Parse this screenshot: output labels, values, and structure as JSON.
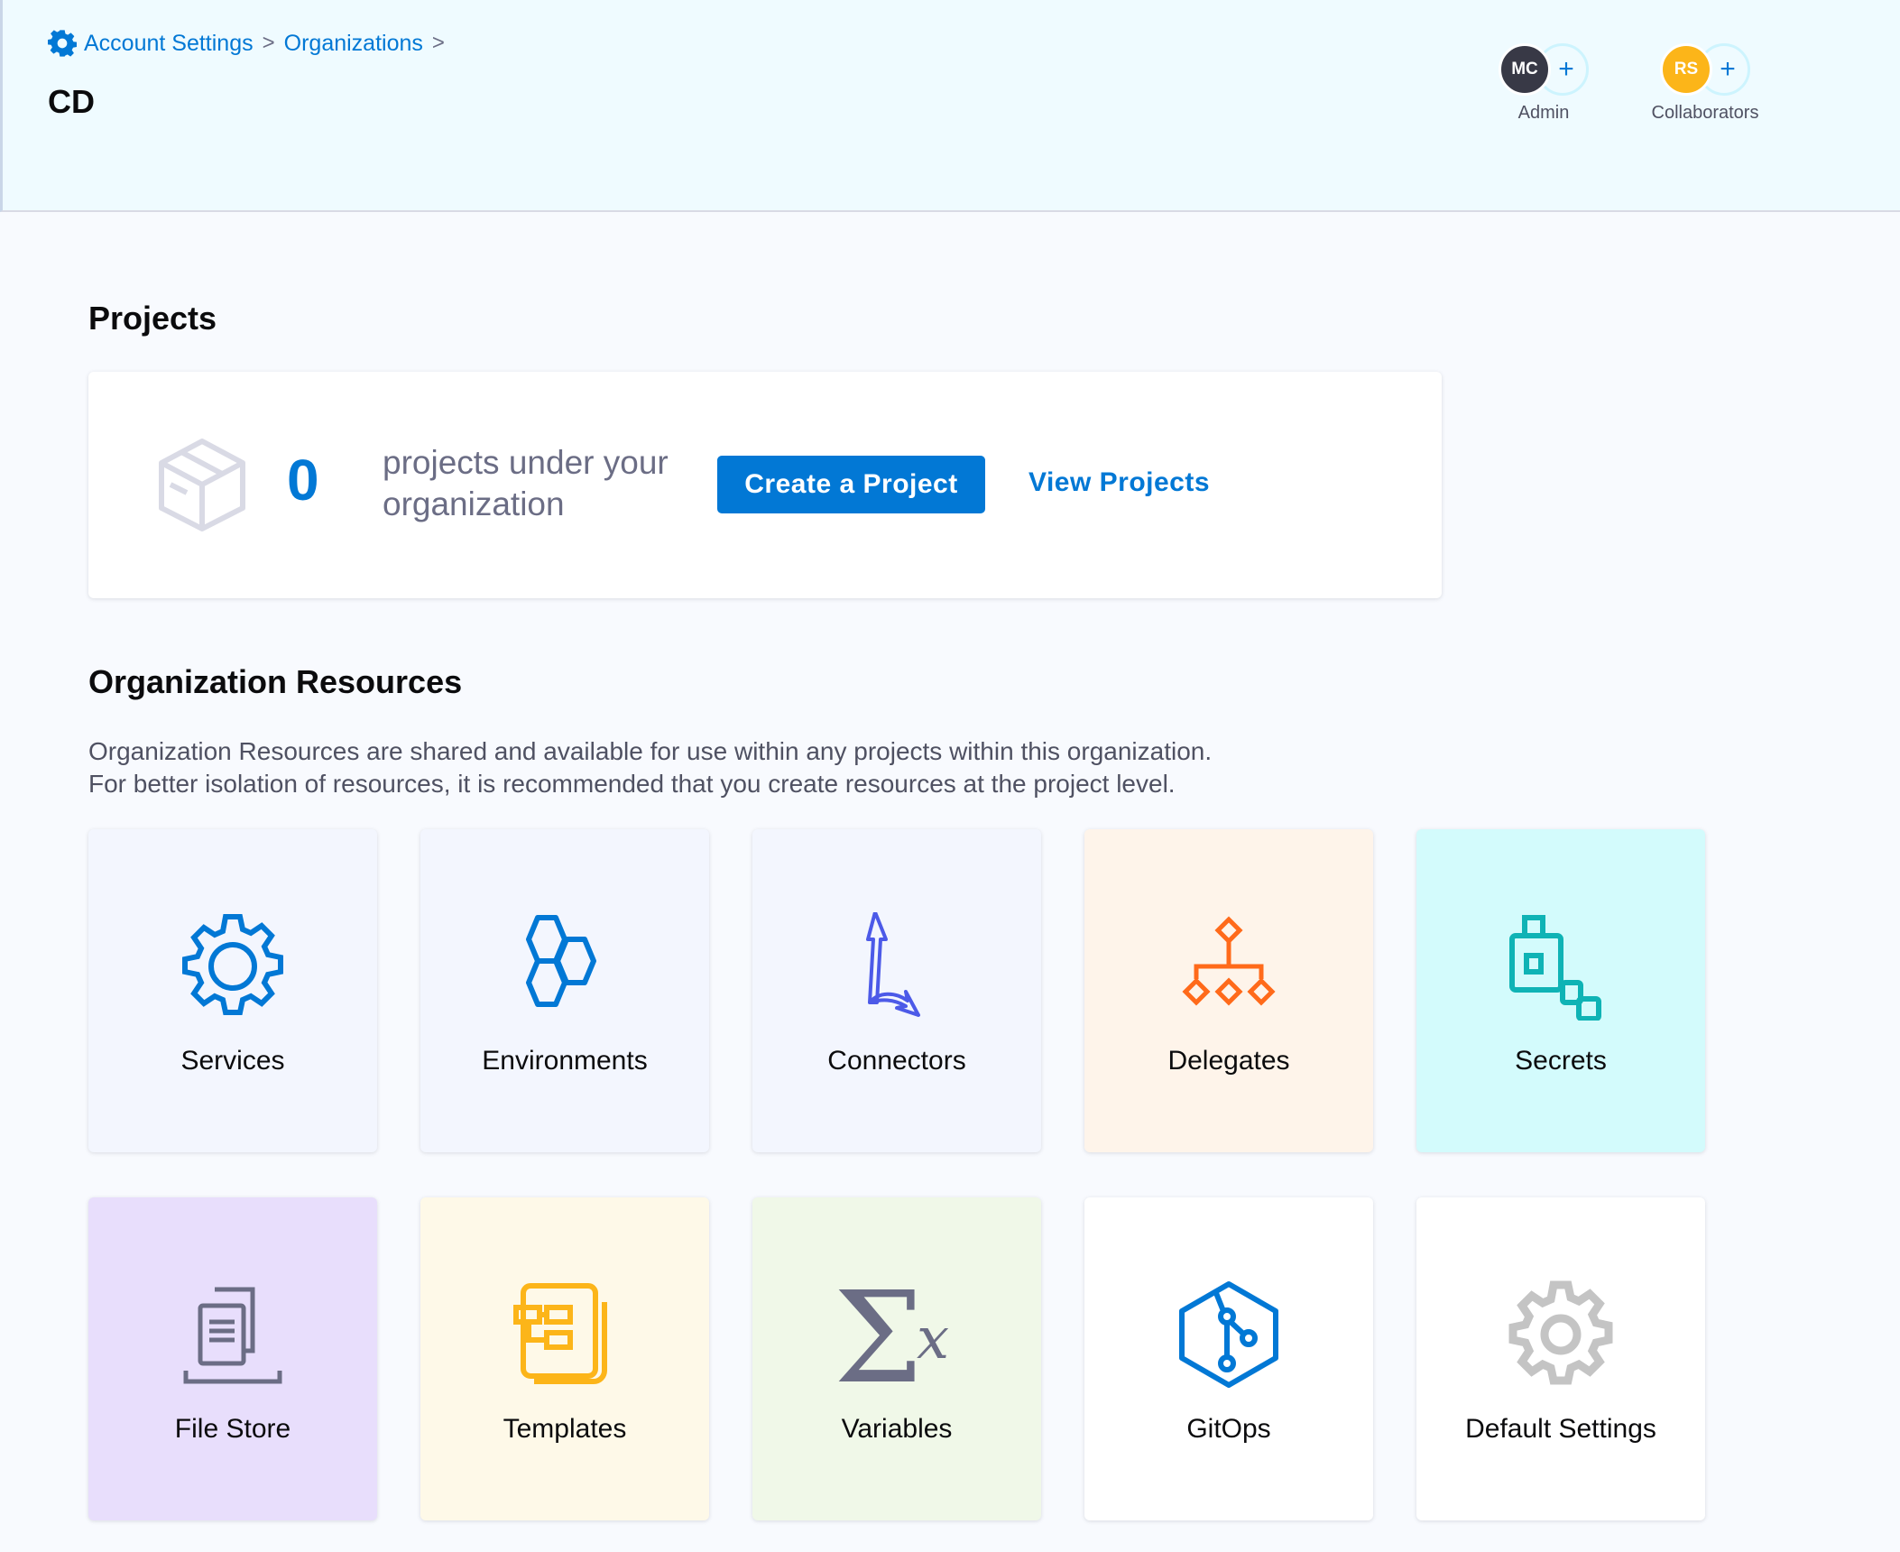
{
  "breadcrumb": {
    "items": [
      "Account Settings",
      "Organizations"
    ],
    "separator": ">",
    "icon": "gear-icon"
  },
  "header": {
    "title": "CD",
    "admin": {
      "initials": "MC",
      "label": "Admin",
      "color": "#383946",
      "add": "+"
    },
    "collaborators": {
      "initials": "RS",
      "label": "Collaborators",
      "color": "#fcb519",
      "add": "+"
    }
  },
  "projects": {
    "heading": "Projects",
    "count": "0",
    "text": "projects under your organization",
    "create_label": "Create a Project",
    "view_label": "View Projects",
    "icon": "cube-icon"
  },
  "resources": {
    "heading": "Organization Resources",
    "description_line1": "Organization Resources are shared and available for use within any projects within this organization.",
    "description_line2": "For better isolation of resources, it is recommended that you create resources at the project level.",
    "tiles": [
      {
        "label": "Services",
        "icon": "gear-icon",
        "bg": "#f3f6fe"
      },
      {
        "label": "Environments",
        "icon": "hexagons-icon",
        "bg": "#f3f6fe"
      },
      {
        "label": "Connectors",
        "icon": "connector-arrows-icon",
        "bg": "#f3f6fe"
      },
      {
        "label": "Delegates",
        "icon": "delegate-tree-icon",
        "bg": "#fef4ea"
      },
      {
        "label": "Secrets",
        "icon": "secrets-lock-icon",
        "bg": "#d3fbfc"
      },
      {
        "label": "File Store",
        "icon": "file-store-icon",
        "bg": "#e8defc"
      },
      {
        "label": "Templates",
        "icon": "templates-icon",
        "bg": "#fef9e8"
      },
      {
        "label": "Variables",
        "icon": "sigma-x-icon",
        "bg": "#f0f8e8"
      },
      {
        "label": "GitOps",
        "icon": "gitops-icon",
        "bg": "#ffffff"
      },
      {
        "label": "Default Settings",
        "icon": "settings-gear-icon",
        "bg": "#ffffff"
      }
    ]
  }
}
